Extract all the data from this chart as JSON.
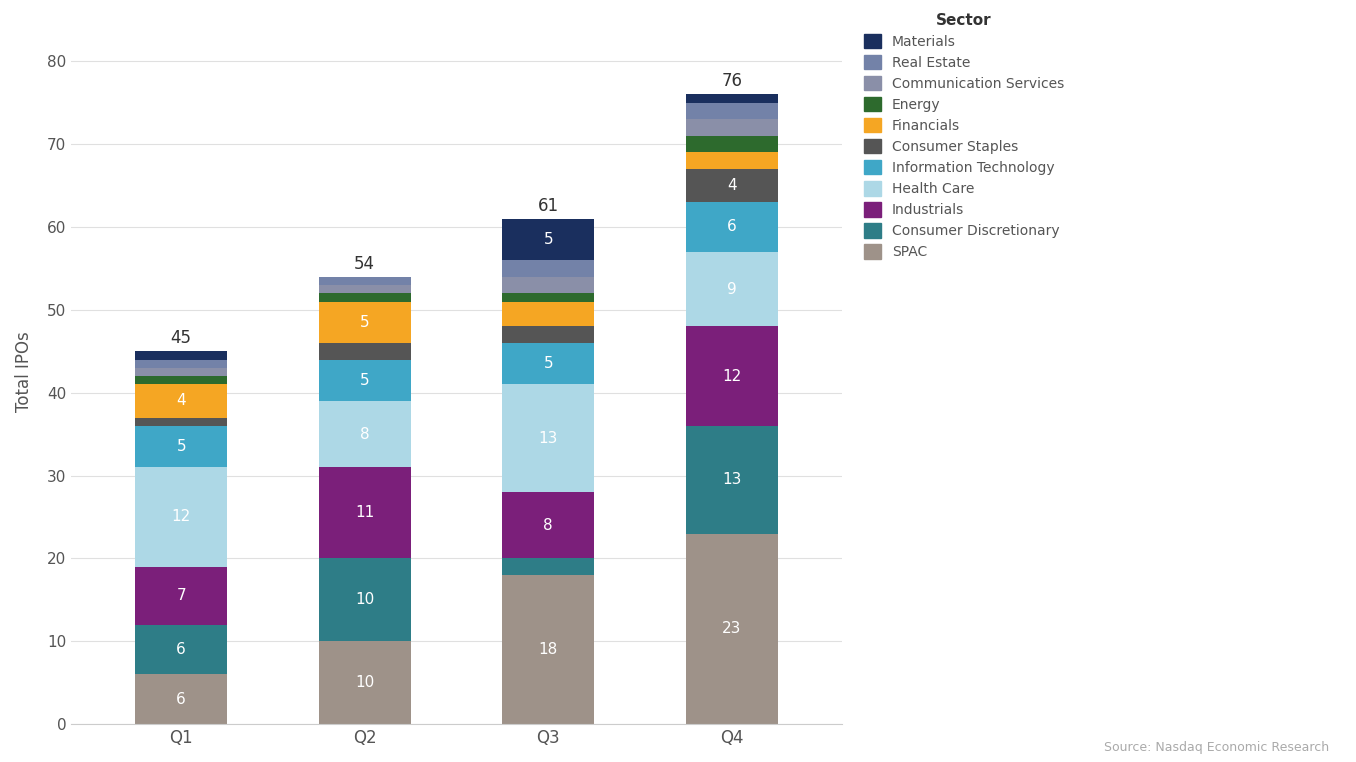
{
  "source": "Source: Nasdaq Economic Research",
  "ylabel": "Total IPOs",
  "quarters": [
    "Q1",
    "Q2",
    "Q3",
    "Q4"
  ],
  "totals": [
    45,
    54,
    61,
    76
  ],
  "sectors": [
    "SPAC",
    "Consumer Discretionary",
    "Industrials",
    "Health Care",
    "Information Technology",
    "Consumer Staples",
    "Financials",
    "Energy",
    "Communication Services",
    "Real Estate",
    "Materials"
  ],
  "legend_sectors": [
    "Materials",
    "Real Estate",
    "Communication Services",
    "Energy",
    "Financials",
    "Consumer Staples",
    "Information Technology",
    "Health Care",
    "Industrials",
    "Consumer Discretionary",
    "SPAC"
  ],
  "colors": {
    "SPAC": "#9e9289",
    "Consumer Discretionary": "#2e7d87",
    "Industrials": "#7b1f7a",
    "Health Care": "#add8e6",
    "Information Technology": "#3fa7c7",
    "Consumer Staples": "#555555",
    "Financials": "#f5a623",
    "Energy": "#2d6a2d",
    "Communication Services": "#8a8fa8",
    "Real Estate": "#7382a8",
    "Materials": "#1a2f5e"
  },
  "data": {
    "SPAC": [
      6,
      10,
      18,
      23
    ],
    "Consumer Discretionary": [
      6,
      10,
      2,
      13
    ],
    "Industrials": [
      7,
      11,
      8,
      12
    ],
    "Health Care": [
      12,
      8,
      13,
      9
    ],
    "Information Technology": [
      5,
      5,
      5,
      6
    ],
    "Consumer Staples": [
      1,
      2,
      2,
      4
    ],
    "Financials": [
      4,
      5,
      3,
      2
    ],
    "Energy": [
      1,
      1,
      1,
      2
    ],
    "Communication Services": [
      1,
      1,
      2,
      2
    ],
    "Real Estate": [
      1,
      1,
      2,
      2
    ],
    "Materials": [
      1,
      0,
      5,
      1
    ]
  },
  "ylim": [
    0,
    85
  ],
  "yticks": [
    0,
    10,
    20,
    30,
    40,
    50,
    60,
    70,
    80
  ],
  "bar_width": 0.5,
  "figsize": [
    13.56,
    7.62
  ],
  "dpi": 100,
  "bg_color": "#ffffff",
  "plot_bg_color": "#ffffff",
  "title_fontsize": 16,
  "subtitle_fontsize": 11,
  "label_fontsize": 11,
  "tick_fontsize": 12,
  "ylabel_fontsize": 12,
  "total_label_fontsize": 12,
  "legend_fontsize": 10,
  "legend_title_fontsize": 11
}
